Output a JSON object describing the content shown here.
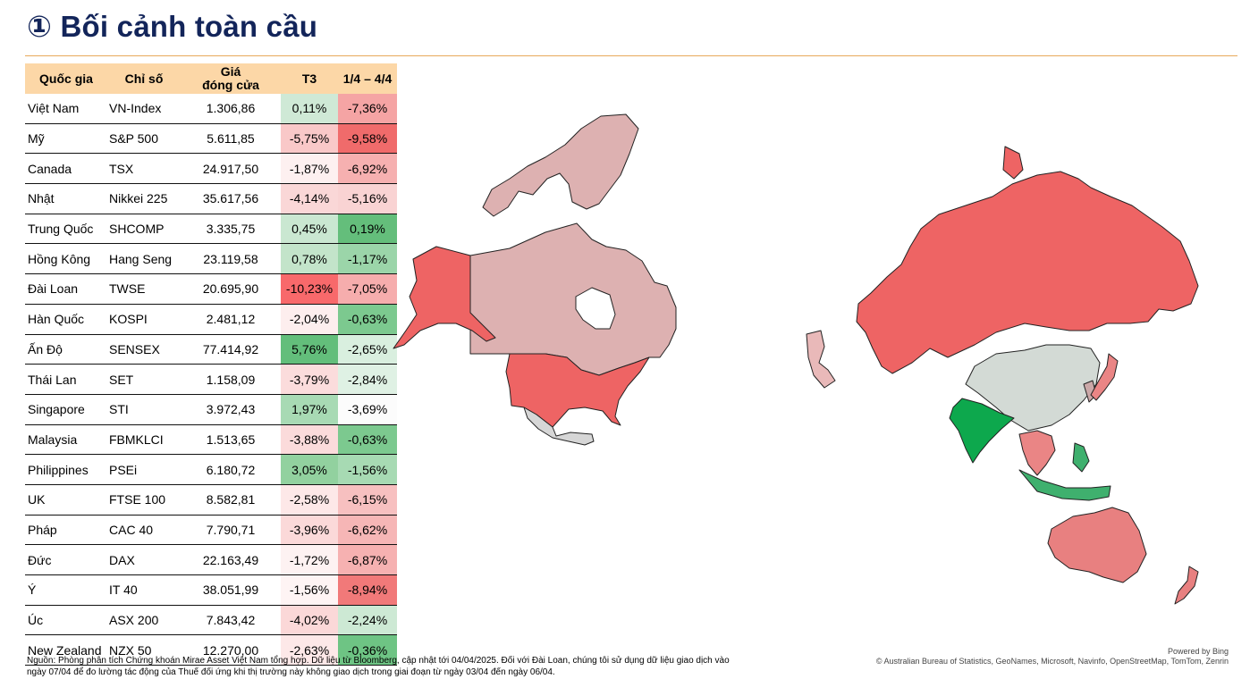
{
  "page": {
    "title": "① Bối cảnh toàn cầu",
    "source": "Nguồn: Phòng phân tích Chứng khoán Mirae Asset Việt Nam tổng hợp. Dữ liệu từ Bloomberg, cập nhật tới 04/04/2025. Đối với Đài Loan, chúng tôi sử dụng dữ liệu giao dịch vào ngày 07/04 để đo lường tác động của Thuế đối ứng khi thị trường này không giao dịch trong giai đoạn từ ngày 03/04 đến ngày 06/04.",
    "powered_by": "Powered by Bing",
    "map_credits": "© Australian Bureau of Statistics, GeoNames, Microsoft, Navinfo, OpenStreetMap, TomTom, Zenrin"
  },
  "table": {
    "headers": {
      "country": "Quốc gia",
      "index": "Chỉ số",
      "close_line1": "Giá",
      "close_line2": "đóng cửa",
      "t3": "T3",
      "period": "1/4 – 4/4"
    },
    "rows": [
      {
        "country": "Việt Nam",
        "index": "VN-Index",
        "close": "1.306,86",
        "t3": "0,11%",
        "period": "-7,36%",
        "t3_color": "#cfe9d6",
        "period_color": "#f5a4a4"
      },
      {
        "country": "Mỹ",
        "index": "S&P 500",
        "close": "5.611,85",
        "t3": "-5,75%",
        "period": "-9,58%",
        "t3_color": "#f9c8c8",
        "period_color": "#f06b6b"
      },
      {
        "country": "Canada",
        "index": "TSX",
        "close": "24.917,50",
        "t3": "-1,87%",
        "period": "-6,92%",
        "t3_color": "#fdf0f0",
        "period_color": "#f6b0b0"
      },
      {
        "country": "Nhật",
        "index": "Nikkei 225",
        "close": "35.617,56",
        "t3": "-4,14%",
        "period": "-5,16%",
        "t3_color": "#fad7d7",
        "period_color": "#f9d3d3"
      },
      {
        "country": "Trung Quốc",
        "index": "SHCOMP",
        "close": "3.335,75",
        "t3": "0,45%",
        "period": "0,19%",
        "t3_color": "#cae7d1",
        "period_color": "#64be7b"
      },
      {
        "country": "Hồng Kông",
        "index": "Hang Seng",
        "close": "23.119,58",
        "t3": "0,78%",
        "period": "-1,17%",
        "t3_color": "#c3e4ca",
        "period_color": "#9bd5a9"
      },
      {
        "country": "Đài Loan",
        "index": "TWSE",
        "close": "20.695,90",
        "t3": "-10,23%",
        "period": "-7,05%",
        "t3_color": "#f8696b",
        "period_color": "#f6adad"
      },
      {
        "country": "Hàn Quốc",
        "index": "KOSPI",
        "close": "2.481,12",
        "t3": "-2,04%",
        "period": "-0,63%",
        "t3_color": "#fdeeee",
        "period_color": "#7cc98f"
      },
      {
        "country": "Ấn Độ",
        "index": "SENSEX",
        "close": "77.414,92",
        "t3": "5,76%",
        "period": "-2,65%",
        "t3_color": "#63be7b",
        "period_color": "#d9efdf"
      },
      {
        "country": "Thái Lan",
        "index": "SET",
        "close": "1.158,09",
        "t3": "-3,79%",
        "period": "-2,84%",
        "t3_color": "#fbdcdc",
        "period_color": "#dff1e4"
      },
      {
        "country": "Singapore",
        "index": "STI",
        "close": "3.972,43",
        "t3": "1,97%",
        "period": "-3,69%",
        "t3_color": "#a8dab4",
        "period_color": "#fcfcfc"
      },
      {
        "country": "Malaysia",
        "index": "FBMKLCI",
        "close": "1.513,65",
        "t3": "-3,88%",
        "period": "-0,63%",
        "t3_color": "#fbdbdb",
        "period_color": "#7cc98f"
      },
      {
        "country": "Philippines",
        "index": "PSEi",
        "close": "6.180,72",
        "t3": "3,05%",
        "period": "-1,56%",
        "t3_color": "#92d19f",
        "period_color": "#a7daB3"
      },
      {
        "country": "UK",
        "index": "FTSE 100",
        "close": "8.582,81",
        "t3": "-2,58%",
        "period": "-6,15%",
        "t3_color": "#fde8e8",
        "period_color": "#f7c0c0"
      },
      {
        "country": "Pháp",
        "index": "CAC 40",
        "close": "7.790,71",
        "t3": "-3,96%",
        "period": "-6,62%",
        "t3_color": "#fbd9d9",
        "period_color": "#f6b6b6"
      },
      {
        "country": "Đức",
        "index": "DAX",
        "close": "22.163,49",
        "t3": "-1,72%",
        "period": "-6,87%",
        "t3_color": "#fdf2f2",
        "period_color": "#f6b1b1"
      },
      {
        "country": "Ý",
        "index": "IT 40",
        "close": "38.051,99",
        "t3": "-1,56%",
        "period": "-8,94%",
        "t3_color": "#fef4f4",
        "period_color": "#f17979"
      },
      {
        "country": "Úc",
        "index": "ASX 200",
        "close": "7.843,42",
        "t3": "-4,02%",
        "period": "-2,24%",
        "t3_color": "#fbd8d8",
        "period_color": "#cde9d4"
      },
      {
        "country": "New Zealand",
        "index": "NZX 50",
        "close": "12.270,00",
        "t3": "-2,63%",
        "period": "-0,36%",
        "t3_color": "#fde8e8",
        "period_color": "#6ec484"
      }
    ]
  },
  "map_colors": {
    "north_america": {
      "canada": "#ddb1b1",
      "usa": "#ee6464",
      "alaska": "#ee6464",
      "mexico": "#d6d6d6"
    },
    "asia_pacific": {
      "russia": "#ee6464",
      "china": "#d3dad5",
      "india": "#0da84d",
      "japan": "#ea8585",
      "korea": "#cba8a8",
      "southeast_asia": "#ea8585",
      "indonesia": "#3fb06e",
      "philippines": "#3fb06e",
      "australia": "#e88080",
      "new_zealand": "#e88080",
      "other": "#e9b9b9"
    }
  }
}
